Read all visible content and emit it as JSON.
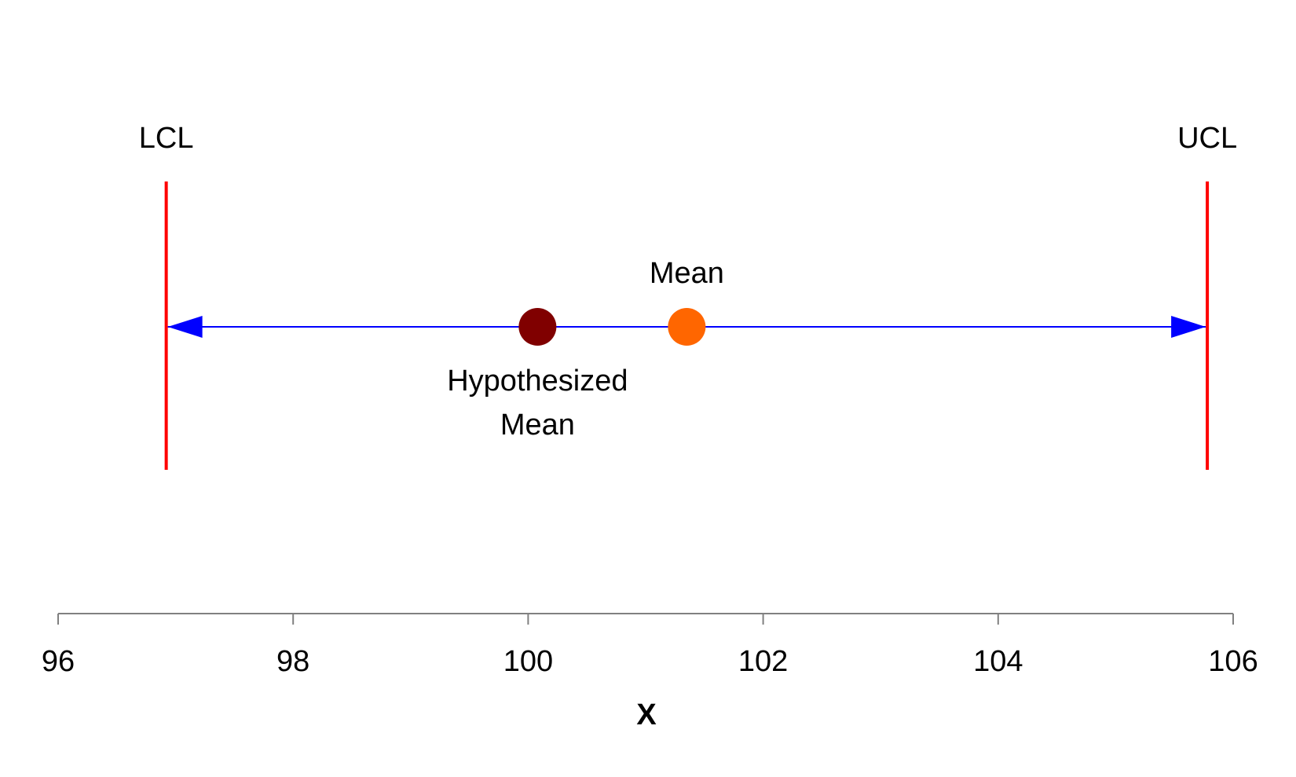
{
  "chart_data": {
    "type": "interval",
    "xlabel": "X",
    "xlim": [
      96,
      106
    ],
    "x_ticks": [
      96,
      98,
      100,
      102,
      104,
      106
    ],
    "x_tick_labels": [
      "96",
      "98",
      "100",
      "102",
      "104",
      "106"
    ],
    "grid": false,
    "limits": [
      {
        "label": "LCL",
        "x": 96.92
      },
      {
        "label": "UCL",
        "x": 105.78
      }
    ],
    "interval": {
      "from": 96.92,
      "to": 105.78,
      "arrows": "both"
    },
    "points": [
      {
        "label_lines": [
          "Hypothesized",
          "Mean"
        ],
        "x": 100.08,
        "label_position": "below"
      },
      {
        "label_lines": [
          "Mean"
        ],
        "x": 101.35,
        "label_position": "above"
      }
    ],
    "colors": {
      "limit_lines": "#ff0000",
      "interval_arrow": "#0000ff",
      "hypothesized_mean": "#800000",
      "mean": "#ff6600",
      "axis": "#808080",
      "text": "#000000"
    }
  }
}
